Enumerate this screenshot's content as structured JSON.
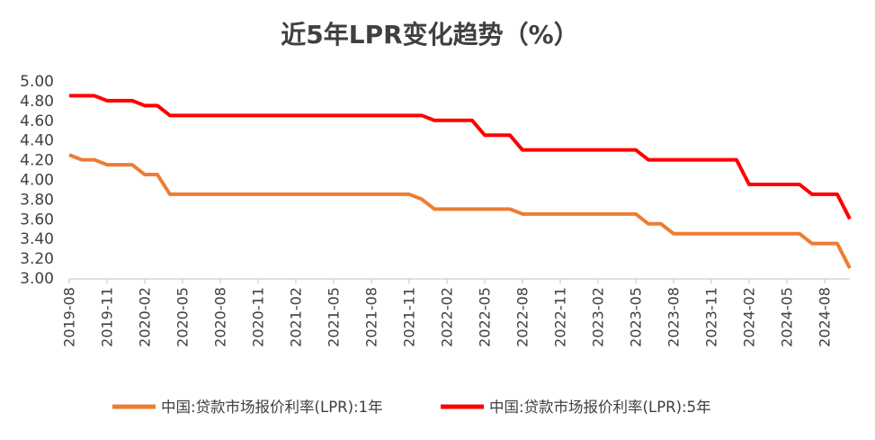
{
  "chart_data": {
    "type": "line",
    "title": "近5年LPR变化趋势（%）",
    "xlabel": "",
    "ylabel": "",
    "ylim": [
      3.0,
      5.0
    ],
    "yticks": [
      "5.00",
      "4.80",
      "4.60",
      "4.40",
      "4.20",
      "4.00",
      "3.80",
      "3.60",
      "3.40",
      "3.20",
      "3.00"
    ],
    "xticks": [
      "2019-08",
      "2019-11",
      "2020-02",
      "2020-05",
      "2020-08",
      "2020-11",
      "2021-02",
      "2021-05",
      "2021-08",
      "2021-11",
      "2022-02",
      "2022-05",
      "2022-08",
      "2022-11",
      "2023-02",
      "2023-05",
      "2023-08",
      "2023-11",
      "2024-02",
      "2024-05",
      "2024-08"
    ],
    "grid": false,
    "legend_position": "bottom",
    "x": [
      "2019-08",
      "2019-09",
      "2019-10",
      "2019-11",
      "2019-12",
      "2020-01",
      "2020-02",
      "2020-03",
      "2020-04",
      "2020-05",
      "2020-06",
      "2020-07",
      "2020-08",
      "2020-09",
      "2020-10",
      "2020-11",
      "2020-12",
      "2021-01",
      "2021-02",
      "2021-03",
      "2021-04",
      "2021-05",
      "2021-06",
      "2021-07",
      "2021-08",
      "2021-09",
      "2021-10",
      "2021-11",
      "2021-12",
      "2022-01",
      "2022-02",
      "2022-03",
      "2022-04",
      "2022-05",
      "2022-06",
      "2022-07",
      "2022-08",
      "2022-09",
      "2022-10",
      "2022-11",
      "2022-12",
      "2023-01",
      "2023-02",
      "2023-03",
      "2023-04",
      "2023-05",
      "2023-06",
      "2023-07",
      "2023-08",
      "2023-09",
      "2023-10",
      "2023-11",
      "2023-12",
      "2024-01",
      "2024-02",
      "2024-03",
      "2024-04",
      "2024-05",
      "2024-06",
      "2024-07",
      "2024-08",
      "2024-09",
      "2024-10"
    ],
    "series": [
      {
        "name": "中国:贷款市场报价利率(LPR):1年",
        "color": "#ED7D31",
        "values": [
          4.25,
          4.2,
          4.2,
          4.15,
          4.15,
          4.15,
          4.05,
          4.05,
          3.85,
          3.85,
          3.85,
          3.85,
          3.85,
          3.85,
          3.85,
          3.85,
          3.85,
          3.85,
          3.85,
          3.85,
          3.85,
          3.85,
          3.85,
          3.85,
          3.85,
          3.85,
          3.85,
          3.85,
          3.8,
          3.7,
          3.7,
          3.7,
          3.7,
          3.7,
          3.7,
          3.7,
          3.65,
          3.65,
          3.65,
          3.65,
          3.65,
          3.65,
          3.65,
          3.65,
          3.65,
          3.65,
          3.55,
          3.55,
          3.45,
          3.45,
          3.45,
          3.45,
          3.45,
          3.45,
          3.45,
          3.45,
          3.45,
          3.45,
          3.45,
          3.35,
          3.35,
          3.35,
          3.1
        ]
      },
      {
        "name": "中国:贷款市场报价利率(LPR):5年",
        "color": "#FF0000",
        "values": [
          4.85,
          4.85,
          4.85,
          4.8,
          4.8,
          4.8,
          4.75,
          4.75,
          4.65,
          4.65,
          4.65,
          4.65,
          4.65,
          4.65,
          4.65,
          4.65,
          4.65,
          4.65,
          4.65,
          4.65,
          4.65,
          4.65,
          4.65,
          4.65,
          4.65,
          4.65,
          4.65,
          4.65,
          4.65,
          4.6,
          4.6,
          4.6,
          4.6,
          4.45,
          4.45,
          4.45,
          4.3,
          4.3,
          4.3,
          4.3,
          4.3,
          4.3,
          4.3,
          4.3,
          4.3,
          4.3,
          4.2,
          4.2,
          4.2,
          4.2,
          4.2,
          4.2,
          4.2,
          4.2,
          3.95,
          3.95,
          3.95,
          3.95,
          3.95,
          3.85,
          3.85,
          3.85,
          3.6
        ]
      }
    ]
  }
}
